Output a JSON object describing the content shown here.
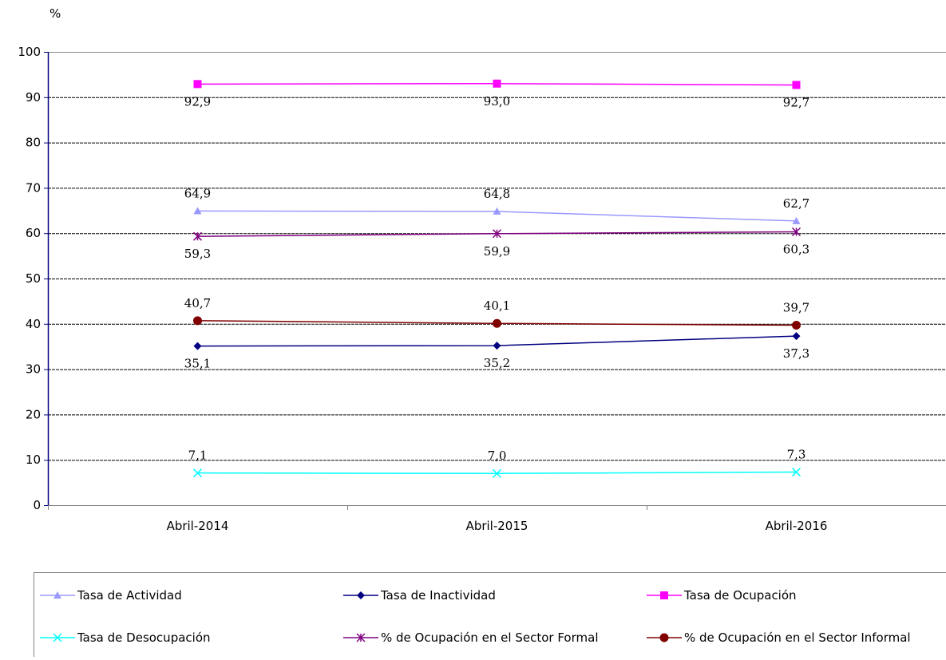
{
  "chart_data": {
    "type": "line",
    "ylabel": "%",
    "categories": [
      "Abril-2014",
      "Abril-2015",
      "Abril-2016"
    ],
    "ylim": [
      0,
      100
    ],
    "yticks": [
      "0",
      "10",
      "20",
      "30",
      "40",
      "50",
      "60",
      "70",
      "80",
      "90",
      "100"
    ],
    "grid": true,
    "legend_position": "bottom",
    "series": [
      {
        "name": "Tasa de Actividad",
        "values": [
          64.9,
          64.8,
          62.7
        ],
        "labels": [
          "64,9",
          "64,8",
          "62,7"
        ],
        "color": "#9999ff",
        "marker": "triangle",
        "label_pos": "above"
      },
      {
        "name": "Tasa de Inactividad",
        "values": [
          35.1,
          35.2,
          37.3
        ],
        "labels": [
          "35,1",
          "35,2",
          "37,3"
        ],
        "color": "#000080",
        "marker": "diamond",
        "label_pos": "below"
      },
      {
        "name": "Tasa de Ocupación",
        "values": [
          92.9,
          93.0,
          92.7
        ],
        "labels": [
          "92,9",
          "93,0",
          "92,7"
        ],
        "color": "#ff00ff",
        "marker": "square",
        "label_pos": "below"
      },
      {
        "name": "Tasa de Desocupación",
        "values": [
          7.1,
          7.0,
          7.3
        ],
        "labels": [
          "7,1",
          "7,0",
          "7,3"
        ],
        "color": "#00ffff",
        "marker": "x",
        "label_pos": "above"
      },
      {
        "name": "% de Ocupación en el Sector Formal",
        "values": [
          59.3,
          59.9,
          60.3
        ],
        "labels": [
          "59,3",
          "59,9",
          "60,3"
        ],
        "color": "#800080",
        "marker": "star",
        "label_pos": "below"
      },
      {
        "name": "% de Ocupación en el Sector Informal",
        "values": [
          40.7,
          40.1,
          39.7
        ],
        "labels": [
          "40,7",
          "40,1",
          "39,7"
        ],
        "color": "#800000",
        "marker": "circle",
        "label_pos": "above"
      }
    ]
  }
}
